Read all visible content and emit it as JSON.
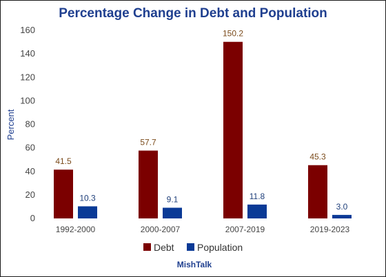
{
  "chart_data": {
    "type": "bar",
    "title": "Percentage Change in Debt and Population",
    "ylabel": "Percent",
    "xlabel": "",
    "categories": [
      "1992-2000",
      "2000-2007",
      "2007-2019",
      "2019-2023"
    ],
    "series": [
      {
        "name": "Debt",
        "values": [
          41.5,
          57.7,
          150.2,
          45.3
        ],
        "color": "#7b0000",
        "label_color": "#7a4a1a"
      },
      {
        "name": "Population",
        "values": [
          10.3,
          9.1,
          11.8,
          3.0
        ],
        "color": "#0a3a96",
        "label_color": "#1f3f7a"
      }
    ],
    "ylim": [
      0,
      160
    ],
    "yticks": [
      0,
      20,
      40,
      60,
      80,
      100,
      120,
      140,
      160
    ],
    "grid": false,
    "legend_position": "bottom",
    "title_color": "#1f3f8f",
    "source": "MishTalk"
  }
}
